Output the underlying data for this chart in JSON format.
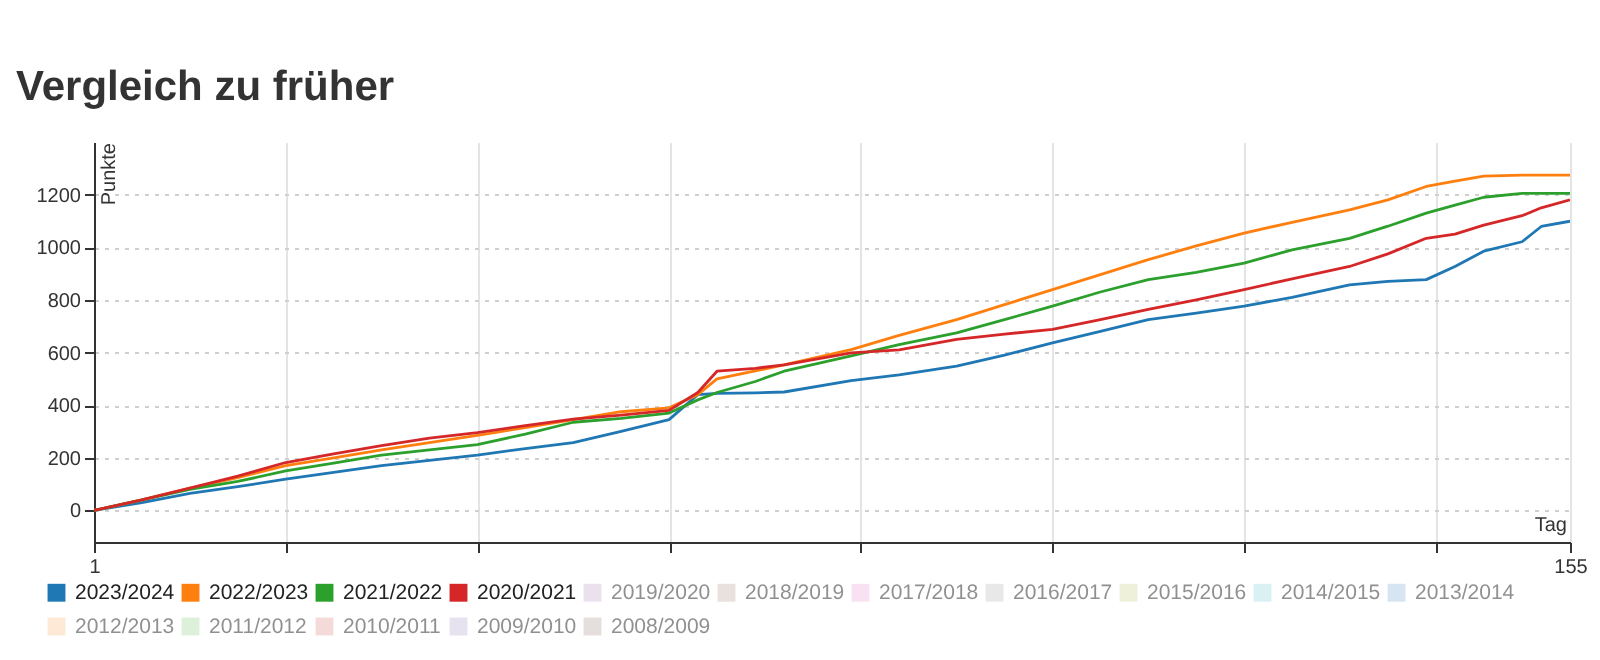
{
  "chart_data": {
    "type": "line",
    "title": "Vergleich zu früher",
    "xlabel": "Tag",
    "ylabel": "Punkte",
    "x": [
      1,
      6,
      11,
      16,
      21,
      26,
      31,
      36,
      41,
      46,
      51,
      56,
      61,
      64,
      66,
      70,
      73,
      80,
      85,
      91,
      96,
      101,
      106,
      111,
      116,
      121,
      126,
      132,
      136,
      140,
      143,
      146,
      150,
      152,
      155
    ],
    "xlim": [
      1,
      155
    ],
    "xticks": [
      1,
      {
        "value": 21,
        "label": null
      },
      {
        "value": 41,
        "label": null
      },
      {
        "value": 61,
        "label": null
      },
      {
        "value": 81,
        "label": null
      },
      {
        "value": 101,
        "label": null
      },
      {
        "value": 121,
        "label": null
      },
      {
        "value": 141,
        "label": null
      },
      155
    ],
    "ylim": [
      -120,
      1400
    ],
    "yticks": [
      0,
      200,
      400,
      600,
      800,
      1000,
      1200
    ],
    "grid": true,
    "legend": "bottom left",
    "series": [
      {
        "name": "2023/2024",
        "color": "#1f77b4",
        "values": [
          0,
          30,
          65,
          90,
          119,
          145,
          170,
          190,
          210,
          235,
          258,
          300,
          345,
          440,
          445,
          447,
          450,
          493,
          515,
          548,
          590,
          637,
          680,
          725,
          750,
          776,
          810,
          857,
          870,
          877,
          927,
          985,
          1021,
          1079,
          1099
        ]
      },
      {
        "name": "2022/2023",
        "color": "#ff7f0e",
        "values": [
          0,
          40,
          85,
          125,
          170,
          200,
          230,
          258,
          285,
          315,
          345,
          375,
          390,
          440,
          500,
          530,
          553,
          611,
          665,
          725,
          782,
          839,
          896,
          953,
          1005,
          1054,
          1095,
          1142,
          1180,
          1231,
          1251,
          1270,
          1274,
          1274,
          1274
        ]
      },
      {
        "name": "2021/2022",
        "color": "#2ca02c",
        "values": [
          0,
          40,
          80,
          110,
          150,
          180,
          210,
          230,
          250,
          290,
          335,
          350,
          370,
          420,
          448,
          490,
          529,
          587,
          630,
          675,
          725,
          776,
          830,
          877,
          905,
          940,
          990,
          1034,
          1080,
          1130,
          1160,
          1190,
          1205,
          1205,
          1205
        ]
      },
      {
        "name": "2020/2021",
        "color": "#d62728",
        "values": [
          0,
          40,
          85,
          130,
          182,
          215,
          246,
          275,
          296,
          322,
          347,
          362,
          380,
          448,
          529,
          540,
          553,
          599,
          610,
          650,
          670,
          688,
          725,
          764,
          800,
          839,
          880,
          927,
          975,
          1034,
          1050,
          1084,
          1120,
          1150,
          1180
        ]
      },
      {
        "name": "2019/2020",
        "color": "#ebe0ee",
        "values": [
          null,
          null,
          null,
          null,
          null,
          null,
          null,
          null,
          null,
          null,
          null,
          null,
          null,
          null,
          null,
          null,
          null,
          null,
          null,
          null,
          null,
          null,
          null,
          null,
          null,
          null,
          null,
          null,
          null,
          null,
          null,
          null,
          null,
          null,
          null
        ]
      },
      {
        "name": "2018/2019",
        "color": "#e8e1de",
        "values": [
          null,
          null,
          null,
          null,
          null,
          null,
          null,
          null,
          null,
          null,
          null,
          null,
          null,
          null,
          null,
          null,
          null,
          null,
          null,
          null,
          null,
          null,
          null,
          null,
          null,
          null,
          null,
          null,
          null,
          null,
          null,
          null,
          null,
          null,
          null
        ]
      },
      {
        "name": "2017/2018",
        "color": "#f8e2f1",
        "values": [
          null,
          null,
          null,
          null,
          null,
          null,
          null,
          null,
          null,
          null,
          null,
          null,
          null,
          null,
          null,
          null,
          null,
          null,
          null,
          null,
          null,
          null,
          null,
          null,
          null,
          null,
          null,
          null,
          null,
          null,
          null,
          null,
          null,
          null,
          null
        ]
      },
      {
        "name": "2016/2017",
        "color": "#e8e8e8",
        "values": [
          null,
          null,
          null,
          null,
          null,
          null,
          null,
          null,
          null,
          null,
          null,
          null,
          null,
          null,
          null,
          null,
          null,
          null,
          null,
          null,
          null,
          null,
          null,
          null,
          null,
          null,
          null,
          null,
          null,
          null,
          null,
          null,
          null,
          null,
          null
        ]
      },
      {
        "name": "2015/2016",
        "color": "#eff0da",
        "values": [
          null,
          null,
          null,
          null,
          null,
          null,
          null,
          null,
          null,
          null,
          null,
          null,
          null,
          null,
          null,
          null,
          null,
          null,
          null,
          null,
          null,
          null,
          null,
          null,
          null,
          null,
          null,
          null,
          null,
          null,
          null,
          null,
          null,
          null,
          null
        ]
      },
      {
        "name": "2014/2015",
        "color": "#daf1f4",
        "values": [
          null,
          null,
          null,
          null,
          null,
          null,
          null,
          null,
          null,
          null,
          null,
          null,
          null,
          null,
          null,
          null,
          null,
          null,
          null,
          null,
          null,
          null,
          null,
          null,
          null,
          null,
          null,
          null,
          null,
          null,
          null,
          null,
          null,
          null,
          null
        ]
      },
      {
        "name": "2013/2014",
        "color": "#d6e5f1",
        "values": [
          null,
          null,
          null,
          null,
          null,
          null,
          null,
          null,
          null,
          null,
          null,
          null,
          null,
          null,
          null,
          null,
          null,
          null,
          null,
          null,
          null,
          null,
          null,
          null,
          null,
          null,
          null,
          null,
          null,
          null,
          null,
          null,
          null,
          null,
          null
        ]
      },
      {
        "name": "2012/2013",
        "color": "#fde9d6",
        "values": [
          null,
          null,
          null,
          null,
          null,
          null,
          null,
          null,
          null,
          null,
          null,
          null,
          null,
          null,
          null,
          null,
          null,
          null,
          null,
          null,
          null,
          null,
          null,
          null,
          null,
          null,
          null,
          null,
          null,
          null,
          null,
          null,
          null,
          null,
          null
        ]
      },
      {
        "name": "2011/2012",
        "color": "#ddf0da",
        "values": [
          null,
          null,
          null,
          null,
          null,
          null,
          null,
          null,
          null,
          null,
          null,
          null,
          null,
          null,
          null,
          null,
          null,
          null,
          null,
          null,
          null,
          null,
          null,
          null,
          null,
          null,
          null,
          null,
          null,
          null,
          null,
          null,
          null,
          null,
          null
        ]
      },
      {
        "name": "2010/2011",
        "color": "#f5dada",
        "values": [
          null,
          null,
          null,
          null,
          null,
          null,
          null,
          null,
          null,
          null,
          null,
          null,
          null,
          null,
          null,
          null,
          null,
          null,
          null,
          null,
          null,
          null,
          null,
          null,
          null,
          null,
          null,
          null,
          null,
          null,
          null,
          null,
          null,
          null,
          null
        ]
      },
      {
        "name": "2009/2010",
        "color": "#e6e2ef",
        "values": [
          null,
          null,
          null,
          null,
          null,
          null,
          null,
          null,
          null,
          null,
          null,
          null,
          null,
          null,
          null,
          null,
          null,
          null,
          null,
          null,
          null,
          null,
          null,
          null,
          null,
          null,
          null,
          null,
          null,
          null,
          null,
          null,
          null,
          null,
          null
        ]
      },
      {
        "name": "2008/2009",
        "color": "#e4dedc",
        "values": [
          null,
          null,
          null,
          null,
          null,
          null,
          null,
          null,
          null,
          null,
          null,
          null,
          null,
          null,
          null,
          null,
          null,
          null,
          null,
          null,
          null,
          null,
          null,
          null,
          null,
          null,
          null,
          null,
          null,
          null,
          null,
          null,
          null,
          null,
          null
        ]
      }
    ]
  }
}
